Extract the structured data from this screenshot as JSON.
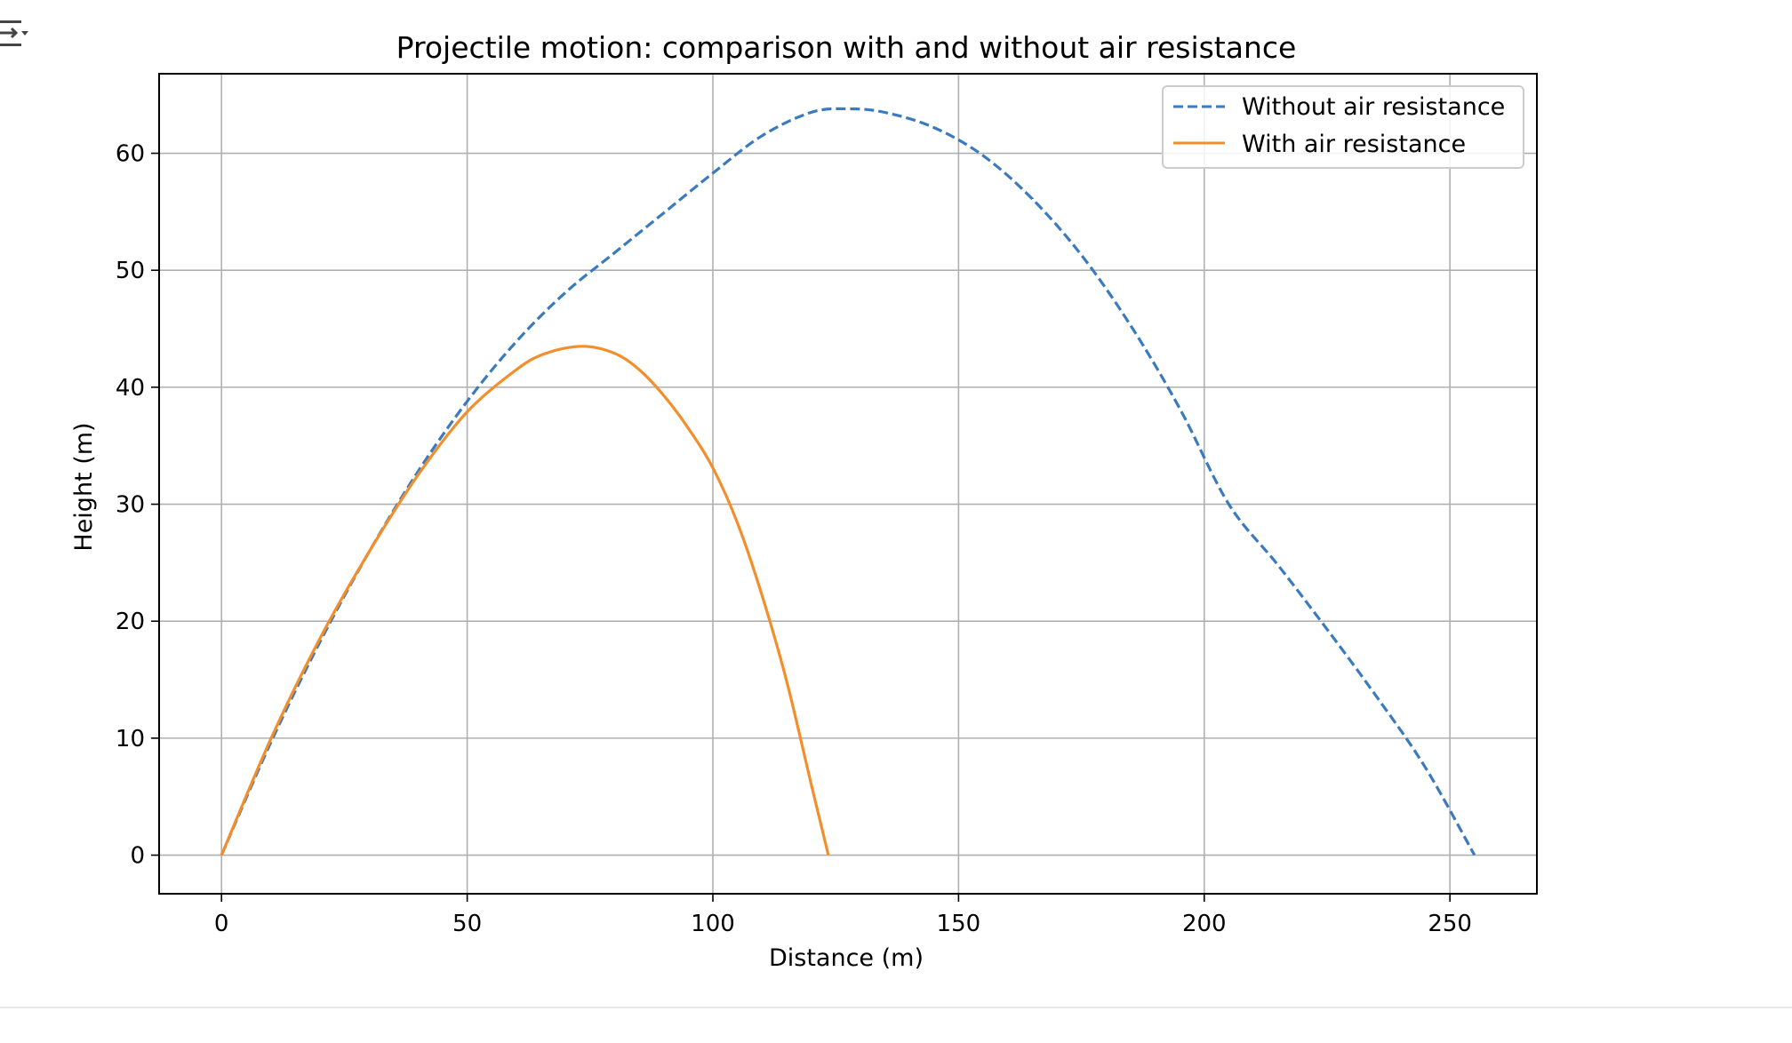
{
  "output_toggle": {
    "icon": "output-collapse-icon"
  },
  "chart_data": {
    "type": "line",
    "title": "Projectile motion: comparison with and without air resistance",
    "xlabel": "Distance (m)",
    "ylabel": "Height (m)",
    "xlim": [
      -12.7,
      267.7
    ],
    "ylim": [
      -3.3,
      66.8
    ],
    "xticks": [
      0,
      50,
      100,
      150,
      200,
      250
    ],
    "yticks": [
      0,
      10,
      20,
      30,
      40,
      50,
      60
    ],
    "grid": true,
    "legend_position": "top-right",
    "series": [
      {
        "name": "Without air resistance",
        "style": "dashed",
        "color": "#3b7bbd",
        "x": [
          0,
          10,
          20,
          30,
          40,
          50,
          60,
          70,
          80,
          90,
          100,
          110,
          120,
          127.5,
          135,
          145,
          155,
          165,
          175,
          185,
          195,
          205,
          215,
          225,
          235,
          245,
          255
        ],
        "y": [
          0,
          9.6,
          18.2,
          25.9,
          32.8,
          38.8,
          43.9,
          48.1,
          51.5,
          54.9,
          58.3,
          61.5,
          63.5,
          63.8,
          63.5,
          62.2,
          59.8,
          56.1,
          51.3,
          45.3,
          38.2,
          30.0,
          24.8,
          19.3,
          13.6,
          7.5,
          0
        ]
      },
      {
        "name": "With air resistance",
        "style": "solid",
        "color": "#f28e2b",
        "x": [
          0,
          10,
          20,
          30,
          40,
          50,
          60,
          66,
          73.5,
          80,
          85,
          90,
          95,
          100,
          105,
          110,
          115,
          120,
          123.5
        ],
        "y": [
          0,
          9.9,
          18.5,
          25.9,
          32.5,
          37.9,
          41.5,
          42.9,
          43.5,
          42.9,
          41.5,
          39.3,
          36.5,
          33.1,
          28.4,
          22.2,
          14.9,
          6.1,
          0
        ]
      }
    ]
  }
}
